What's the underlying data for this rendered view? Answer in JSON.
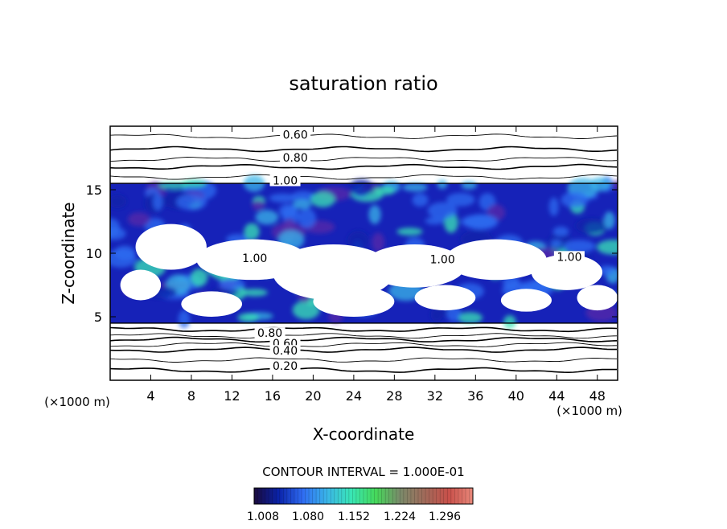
{
  "chart_data": {
    "type": "heatmap",
    "title": "saturation ratio",
    "xlabel": "X-coordinate",
    "ylabel": "Z-coordinate",
    "x_unit": "(×1000 m)",
    "y_unit": "(×1000 m)",
    "xlim": [
      0,
      50
    ],
    "ylim": [
      0,
      20
    ],
    "x_ticks": [
      "4",
      "8",
      "12",
      "16",
      "20",
      "24",
      "28",
      "32",
      "36",
      "40",
      "44",
      "48"
    ],
    "y_ticks": [
      "5",
      "10",
      "15"
    ],
    "contour_labels": [
      "0.60",
      "0.80",
      "1.00",
      "1.00",
      "1.00",
      "1.00",
      "0.80",
      "0.60",
      "0.40",
      "0.20"
    ],
    "contour_interval_text": "CONTOUR INTERVAL = 1.000E-01",
    "colorbar": {
      "tick_labels": [
        "1.008",
        "1.080",
        "1.152",
        "1.224",
        "1.296"
      ],
      "range": [
        1.008,
        1.33
      ],
      "colors": [
        "#1a0a3c",
        "#0a22a8",
        "#2f6cf2",
        "#3ab5e8",
        "#39e6b5",
        "#45d95a",
        "#7a8a6a",
        "#a06a5a",
        "#c8504a",
        "#e8887a"
      ]
    },
    "contour_lines_z": [
      0.8,
      1.6,
      2.4,
      2.8,
      3.2,
      3.5,
      4.0,
      16.0,
      16.8,
      17.4,
      18.2,
      19.2
    ],
    "supersaturated_band": {
      "z_bottom": 4.5,
      "z_top": 15.5
    }
  }
}
